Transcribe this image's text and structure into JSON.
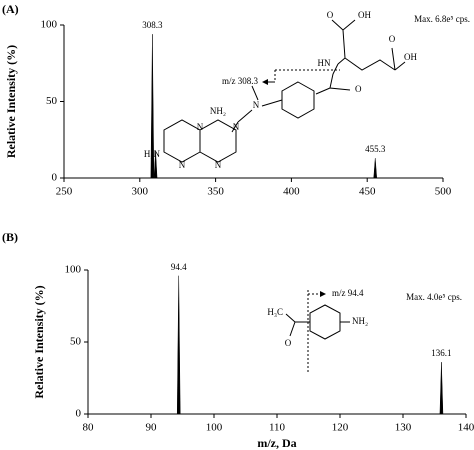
{
  "chart_data": [
    {
      "type": "spectrum",
      "panel_label": "(A)",
      "y_label": "Relative Intensity (%)",
      "x": [
        308.3,
        310.4,
        455.3
      ],
      "values": [
        94,
        18,
        13
      ],
      "x_labels": [
        "308.3",
        null,
        "455.3"
      ],
      "color": "#000000",
      "xlim": [
        250,
        500
      ],
      "ylim": [
        0,
        100
      ],
      "xticks": [
        250,
        300,
        350,
        400,
        450,
        500
      ],
      "yticks": [
        0,
        50,
        100
      ],
      "annotations": {
        "intensity": "Max. 6.8e⁵ cps.",
        "fragment": "m/z 308.3"
      },
      "structure_labels": [
        "O",
        "OH",
        "HN",
        "O",
        "OH",
        "O",
        "N",
        "NH₂",
        "N",
        "N",
        "H₂N",
        "N",
        "N"
      ]
    },
    {
      "type": "spectrum",
      "panel_label": "(B)",
      "y_label": "Relative Intensity (%)",
      "x_label": "m/z, Da",
      "x": [
        94.4,
        136.1
      ],
      "values": [
        96,
        36
      ],
      "x_labels": [
        "94.4",
        "136.1"
      ],
      "color": "#000000",
      "xlim": [
        80,
        140
      ],
      "ylim": [
        0,
        100
      ],
      "xticks": [
        80,
        90,
        100,
        110,
        120,
        130,
        140
      ],
      "yticks": [
        0,
        50,
        100
      ],
      "annotations": {
        "intensity": "Max. 4.0e⁵ cps.",
        "fragment": "m/z 94.4"
      },
      "structure_labels": [
        "H₃C",
        "O",
        "NH₂"
      ]
    }
  ]
}
